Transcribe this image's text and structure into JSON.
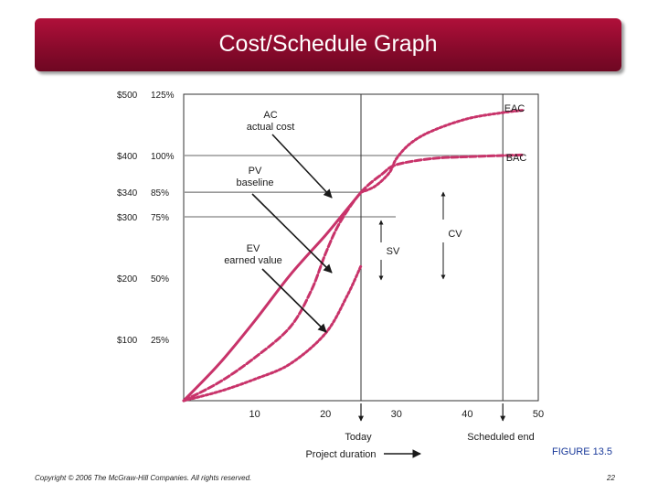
{
  "slide": {
    "title": "Cost/Schedule Graph",
    "figure_label": "FIGURE 13.5",
    "copyright": "Copyright © 2006 The McGraw-Hill Companies. All rights reserved.",
    "page_number": "22",
    "colors": {
      "title_bg": "#8a0a2c",
      "curve": "#c8336a",
      "figure_label": "#1a3a9a"
    }
  },
  "chart_data": {
    "type": "line",
    "xlabel": "Project duration",
    "x_ticks": [
      10,
      20,
      30,
      40,
      50
    ],
    "xlim": [
      0,
      50
    ],
    "ylim": [
      0,
      500
    ],
    "y_ticks": [
      {
        "value": 100,
        "dollar": "$100",
        "percent": "25%"
      },
      {
        "value": 200,
        "dollar": "$200",
        "percent": "50%"
      },
      {
        "value": 300,
        "dollar": "$300",
        "percent": "75%"
      },
      {
        "value": 340,
        "dollar": "$340",
        "percent": "85%"
      },
      {
        "value": 400,
        "dollar": "$400",
        "percent": "100%"
      },
      {
        "value": 500,
        "dollar": "$500",
        "percent": "125%"
      }
    ],
    "reference_lines": [
      300,
      340,
      400
    ],
    "today": {
      "x": 25,
      "label": "Today"
    },
    "scheduled_end": {
      "x": 45,
      "label": "Scheduled end"
    },
    "series": [
      {
        "name": "AC",
        "style": "solid",
        "points": [
          [
            0,
            0
          ],
          [
            5,
            60
          ],
          [
            10,
            130
          ],
          [
            15,
            205
          ],
          [
            20,
            270
          ],
          [
            22.5,
            305
          ],
          [
            25,
            340
          ]
        ]
      },
      {
        "name": "AC forecast",
        "style": "dotted",
        "points": [
          [
            25,
            340
          ],
          [
            27,
            350
          ],
          [
            29,
            372
          ],
          [
            30,
            395
          ],
          [
            32,
            420
          ],
          [
            35,
            440
          ],
          [
            40,
            460
          ],
          [
            45,
            470
          ],
          [
            48,
            474
          ]
        ]
      },
      {
        "name": "PV",
        "style": "dashed",
        "points": [
          [
            0,
            0
          ],
          [
            5,
            30
          ],
          [
            10,
            70
          ],
          [
            15,
            120
          ],
          [
            18,
            180
          ],
          [
            20,
            240
          ],
          [
            22,
            290
          ],
          [
            25,
            340
          ],
          [
            28,
            370
          ],
          [
            30,
            385
          ],
          [
            35,
            395
          ],
          [
            40,
            398
          ],
          [
            45,
            400
          ],
          [
            48,
            401
          ]
        ]
      },
      {
        "name": "EV",
        "style": "dotted",
        "points": [
          [
            0,
            0
          ],
          [
            5,
            15
          ],
          [
            10,
            35
          ],
          [
            15,
            60
          ],
          [
            20,
            110
          ],
          [
            23,
            170
          ],
          [
            25,
            220
          ]
        ]
      }
    ],
    "annotations": {
      "ac": {
        "name": "AC",
        "desc": "actual cost"
      },
      "pv": {
        "name": "PV",
        "desc": "baseline"
      },
      "ev": {
        "name": "EV",
        "desc": "earned value"
      },
      "sv": "SV",
      "cv": "CV",
      "eac": "EAC",
      "bac": "BAC"
    }
  }
}
